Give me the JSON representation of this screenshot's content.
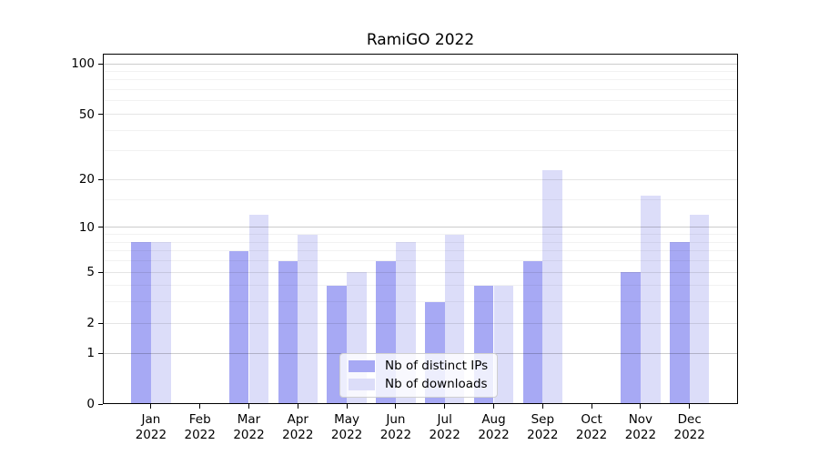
{
  "chart_data": {
    "type": "bar",
    "title": "RamiGO 2022",
    "months": [
      "Jan",
      "Feb",
      "Mar",
      "Apr",
      "May",
      "Jun",
      "Jul",
      "Aug",
      "Sep",
      "Oct",
      "Nov",
      "Dec"
    ],
    "year": "2022",
    "categories": [
      "Jan 2022",
      "Feb 2022",
      "Mar 2022",
      "Apr 2022",
      "May 2022",
      "Jun 2022",
      "Jul 2022",
      "Aug 2022",
      "Sep 2022",
      "Oct 2022",
      "Nov 2022",
      "Dec 2022"
    ],
    "series": [
      {
        "name": "Nb of distinct IPs",
        "color": "#a7a9f4",
        "values": [
          8,
          0,
          7,
          6,
          4,
          6,
          3,
          4,
          6,
          0,
          5,
          8
        ]
      },
      {
        "name": "Nb of downloads",
        "color": "#dcddf9",
        "values": [
          8,
          0,
          12,
          9,
          5,
          8,
          9,
          4,
          23,
          0,
          16,
          12
        ]
      }
    ],
    "xlabel": "",
    "ylabel": "",
    "y_axis": {
      "scale": "log1p",
      "ticks": [
        0,
        1,
        2,
        5,
        10,
        20,
        50,
        100
      ],
      "minor_gridlines": [
        3,
        4,
        6,
        7,
        8,
        9,
        15,
        30,
        40,
        60,
        70,
        80,
        90
      ],
      "range": [
        0,
        115
      ]
    },
    "grid": true,
    "legend": {
      "position": "lower center",
      "entries": [
        "Nb of distinct IPs",
        "Nb of downloads"
      ]
    }
  },
  "colors": {
    "bar_distinct_ips": "#a7a9f4",
    "bar_downloads": "#dcddf9",
    "axis": "#000000",
    "grid_major": "rgba(0,0,0,0.20)",
    "grid_mid": "rgba(0,0,0,0.10)",
    "grid_minor": "rgba(0,0,0,0.05)",
    "legend_border": "#cfcfcf",
    "legend_background": "rgba(255,255,255,0.8)"
  }
}
